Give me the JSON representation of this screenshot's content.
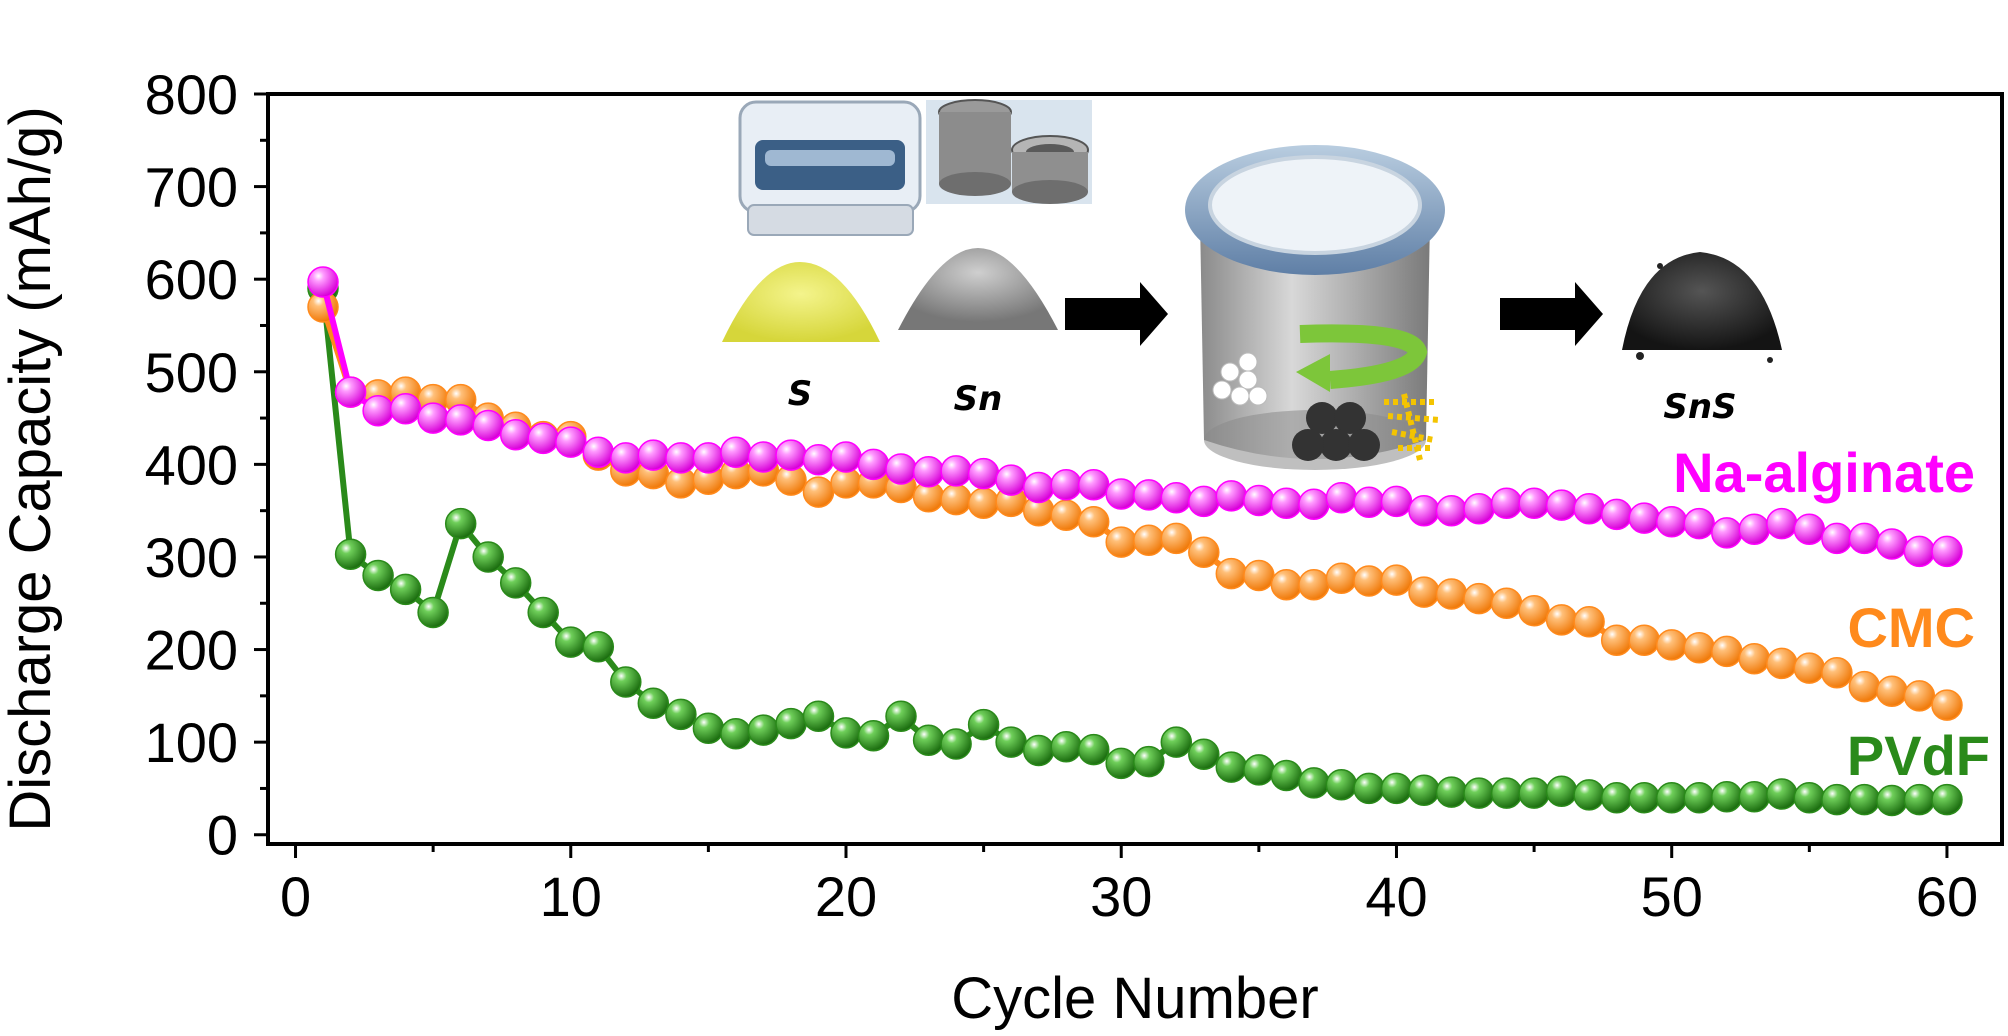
{
  "chart_data": {
    "type": "line",
    "title": "",
    "xlabel": "Cycle Number",
    "ylabel": "Discharge Capacity (mAh/g)",
    "xlim": [
      -1,
      62
    ],
    "ylim": [
      -10,
      800
    ],
    "xticks": [
      0,
      10,
      20,
      30,
      40,
      50,
      60
    ],
    "yticks": [
      0,
      100,
      200,
      300,
      400,
      500,
      600,
      700,
      800
    ],
    "grid": false,
    "legend": "series labels placed at the right end of each curve",
    "series": [
      {
        "name": "Na-alginate",
        "color": "#ff00ff",
        "x": [
          1,
          2,
          3,
          4,
          5,
          6,
          7,
          8,
          9,
          10,
          11,
          12,
          13,
          14,
          15,
          16,
          17,
          18,
          19,
          20,
          21,
          22,
          23,
          24,
          25,
          26,
          27,
          28,
          29,
          30,
          31,
          32,
          33,
          34,
          35,
          36,
          37,
          38,
          39,
          40,
          41,
          42,
          43,
          44,
          45,
          46,
          47,
          48,
          49,
          50,
          51,
          52,
          53,
          54,
          55,
          56,
          57,
          58,
          59,
          60
        ],
        "y": [
          597,
          478,
          458,
          460,
          450,
          448,
          442,
          432,
          428,
          424,
          413,
          407,
          410,
          407,
          407,
          413,
          408,
          410,
          405,
          408,
          400,
          395,
          392,
          393,
          390,
          383,
          375,
          378,
          378,
          368,
          367,
          364,
          360,
          366,
          361,
          358,
          357,
          364,
          359,
          360,
          350,
          350,
          352,
          358,
          358,
          356,
          352,
          346,
          342,
          338,
          336,
          326,
          330,
          336,
          330,
          320,
          320,
          314,
          306,
          306
        ]
      },
      {
        "name": "CMC",
        "color": "#ff8a1c",
        "x": [
          1,
          2,
          3,
          4,
          5,
          6,
          7,
          8,
          9,
          10,
          11,
          12,
          13,
          14,
          15,
          16,
          17,
          18,
          19,
          20,
          21,
          22,
          23,
          24,
          25,
          26,
          27,
          28,
          29,
          30,
          31,
          32,
          33,
          34,
          35,
          36,
          37,
          38,
          39,
          40,
          41,
          42,
          43,
          44,
          45,
          46,
          47,
          48,
          49,
          50,
          51,
          52,
          53,
          54,
          55,
          56,
          57,
          58,
          59,
          60
        ],
        "y": [
          570,
          478,
          475,
          478,
          470,
          470,
          450,
          440,
          430,
          430,
          410,
          393,
          390,
          380,
          384,
          390,
          393,
          383,
          370,
          380,
          380,
          375,
          365,
          362,
          358,
          360,
          350,
          345,
          338,
          316,
          318,
          320,
          305,
          282,
          280,
          270,
          270,
          277,
          274,
          275,
          262,
          260,
          255,
          250,
          242,
          232,
          230,
          210,
          210,
          205,
          202,
          198,
          190,
          185,
          180,
          175,
          160,
          155,
          150,
          140
        ]
      },
      {
        "name": "PVdF",
        "color": "#2a8a1a",
        "x": [
          1,
          2,
          3,
          4,
          5,
          6,
          7,
          8,
          9,
          10,
          11,
          12,
          13,
          14,
          15,
          16,
          17,
          18,
          19,
          20,
          21,
          22,
          23,
          24,
          25,
          26,
          27,
          28,
          29,
          30,
          31,
          32,
          33,
          34,
          35,
          36,
          37,
          38,
          39,
          40,
          41,
          42,
          43,
          44,
          45,
          46,
          47,
          48,
          49,
          50,
          51,
          52,
          53,
          54,
          55,
          56,
          57,
          58,
          59,
          60
        ],
        "y": [
          590,
          303,
          280,
          265,
          240,
          336,
          300,
          272,
          240,
          208,
          203,
          165,
          142,
          130,
          115,
          109,
          113,
          120,
          128,
          110,
          107,
          128,
          102,
          98,
          119,
          100,
          91,
          95,
          92,
          77,
          79,
          100,
          87,
          73,
          70,
          64,
          56,
          54,
          50,
          50,
          48,
          46,
          45,
          45,
          45,
          47,
          43,
          40,
          40,
          40,
          40,
          41,
          41,
          44,
          40,
          38,
          38,
          37,
          38,
          38
        ]
      }
    ]
  },
  "inset": {
    "labels": {
      "s": "S",
      "sn": "Sn",
      "sns": "SnS"
    }
  }
}
